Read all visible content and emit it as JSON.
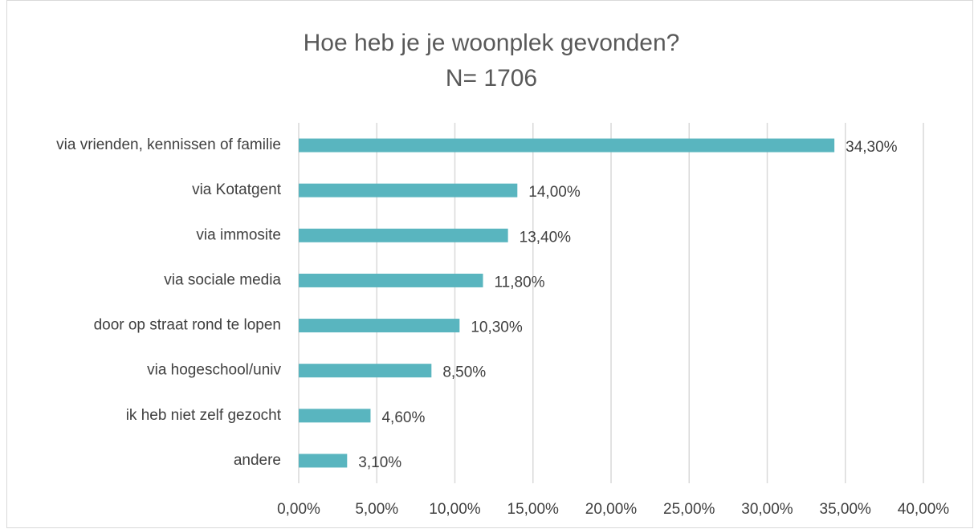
{
  "chart_data": {
    "type": "bar",
    "orientation": "horizontal",
    "title": "Hoe heb je je woonplek gevonden?",
    "subtitle": "N= 1706",
    "categories": [
      "via vrienden, kennissen of familie",
      "via Kotatgent",
      "via immosite",
      "via sociale media",
      "door op straat rond te lopen",
      "via hogeschool/univ",
      "ik heb niet zelf gezocht",
      "andere"
    ],
    "values": [
      34.3,
      14.0,
      13.4,
      11.8,
      10.3,
      8.5,
      4.6,
      3.1
    ],
    "value_labels": [
      "34,30%",
      "14,00%",
      "13,40%",
      "11,80%",
      "10,30%",
      "8,50%",
      "4,60%",
      "3,10%"
    ],
    "color": "#59b5bf",
    "xlim": [
      0,
      40
    ],
    "xticks": [
      {
        "value": 0,
        "label": "0,00%"
      },
      {
        "value": 5,
        "label": "5,00%"
      },
      {
        "value": 10,
        "label": "10,00%"
      },
      {
        "value": 15,
        "label": "15,00%"
      },
      {
        "value": 20,
        "label": "20,00%"
      },
      {
        "value": 25,
        "label": "25,00%"
      },
      {
        "value": 30,
        "label": "30,00%"
      },
      {
        "value": 35,
        "label": "35,00%"
      },
      {
        "value": 40,
        "label": "40,00%"
      }
    ],
    "grid": true
  }
}
